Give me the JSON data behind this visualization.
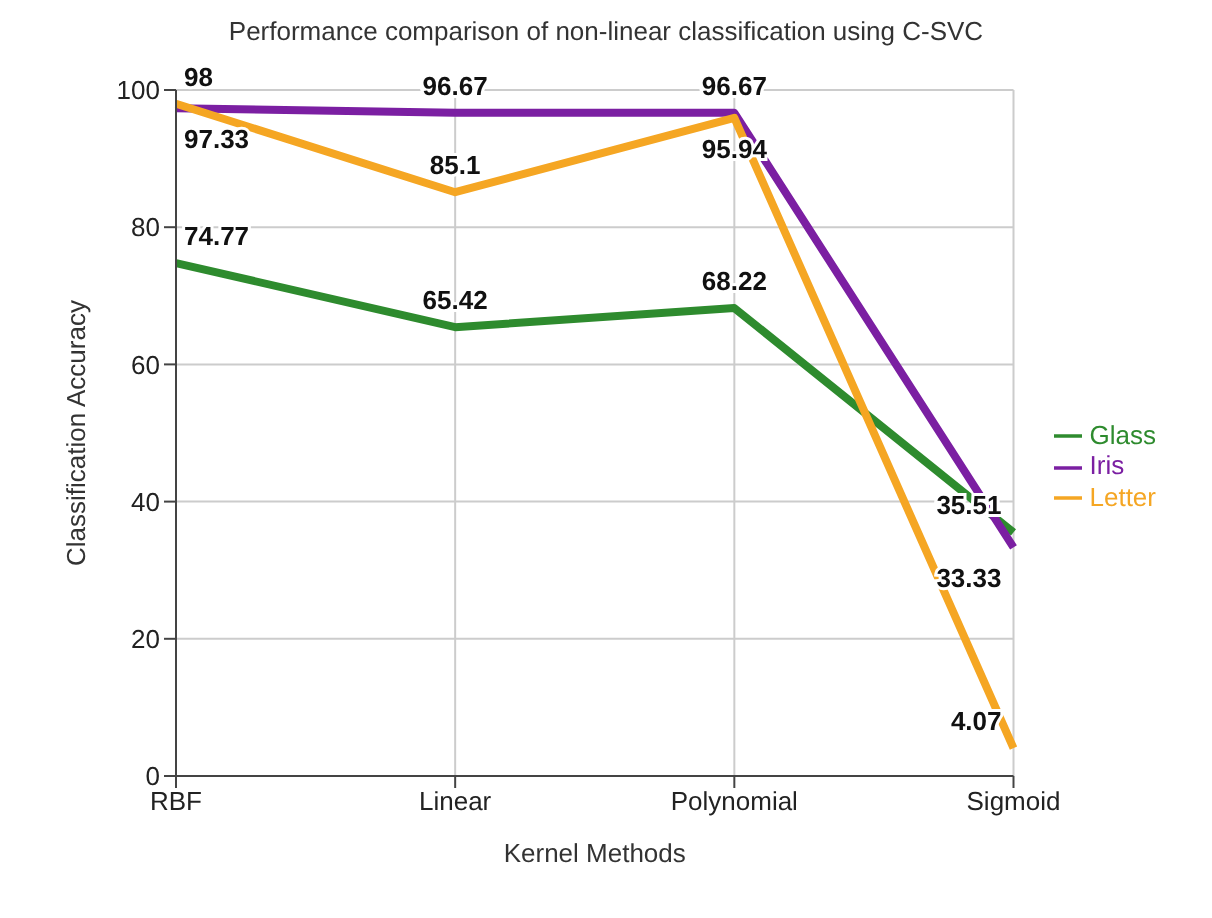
{
  "chart_data": {
    "type": "line",
    "title": "Performance comparison of non-linear classification using C-SVC",
    "xlabel": "Kernel Methods",
    "ylabel": "Classification Accuracy",
    "categories": [
      "RBF",
      "Linear",
      "Polynomial",
      "Sigmoid"
    ],
    "series": [
      {
        "name": "Glass",
        "color": "#2e8b2e",
        "values": [
          74.77,
          65.42,
          68.22,
          35.51
        ]
      },
      {
        "name": "Iris",
        "color": "#7b1fa2",
        "values": [
          97.33,
          96.67,
          96.67,
          33.33
        ]
      },
      {
        "name": "Letter",
        "color": "#f5a623",
        "values": [
          98,
          85.1,
          95.94,
          4.07
        ]
      }
    ],
    "ylim": [
      0,
      100
    ],
    "yticks": [
      0,
      20,
      40,
      60,
      80,
      100
    ],
    "grid": true,
    "legend": "right",
    "marker": "none",
    "line_style": "solid",
    "data_labels": true
  }
}
